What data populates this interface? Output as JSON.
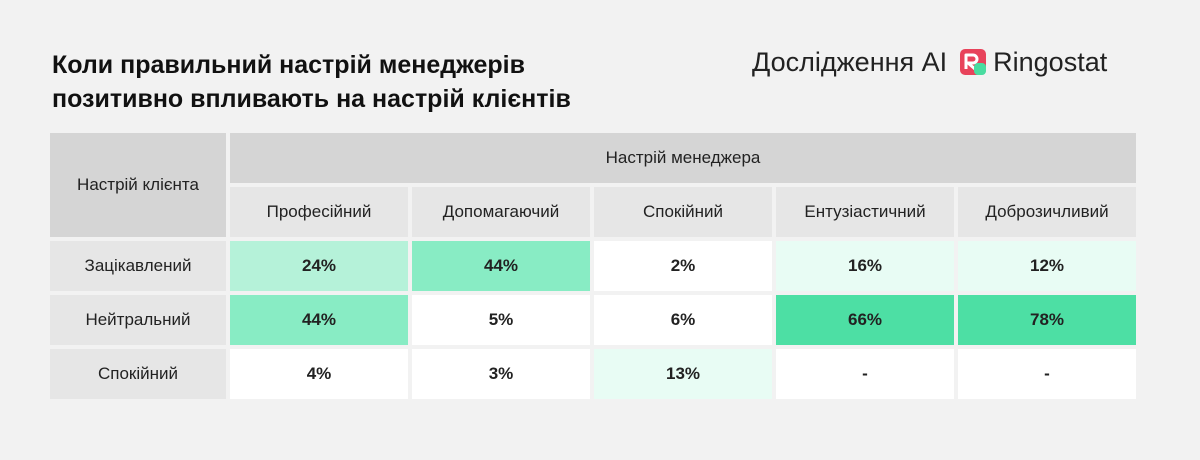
{
  "title_lines": [
    "Коли правильний настрій менеджерів",
    "позитивно впливають на настрій клієнтів"
  ],
  "brand": {
    "research": "Дослідження AI",
    "logo_icon": "ringostat-logo-icon",
    "name": "Ringostat",
    "logo_colors": [
      "#e8435b",
      "#49dca0"
    ]
  },
  "chart_data": {
    "type": "table",
    "corner_label": "Настрій клієнта",
    "column_group_label": "Настрій менеджера",
    "columns": [
      "Професійний",
      "Допомагаючий",
      "Спокійний",
      "Ентузіастичний",
      "Доброзичливий"
    ],
    "rows": [
      {
        "label": "Зацікавлений",
        "values": [
          "24%",
          "44%",
          "2%",
          "16%",
          "12%"
        ]
      },
      {
        "label": "Нейтральний",
        "values": [
          "44%",
          "5%",
          "6%",
          "66%",
          "78%"
        ]
      },
      {
        "label": "Спокійний",
        "values": [
          "4%",
          "3%",
          "13%",
          "-",
          "-"
        ]
      }
    ],
    "heat_colors": {
      "0": "#ffffff",
      "1": "#e8fcf4",
      "2": "#b5f2d9",
      "3": "#88ecc4",
      "4": "#4ddfa4"
    },
    "cell_levels": [
      [
        2,
        3,
        0,
        1,
        1
      ],
      [
        3,
        0,
        0,
        4,
        4
      ],
      [
        0,
        0,
        1,
        0,
        0
      ]
    ]
  }
}
